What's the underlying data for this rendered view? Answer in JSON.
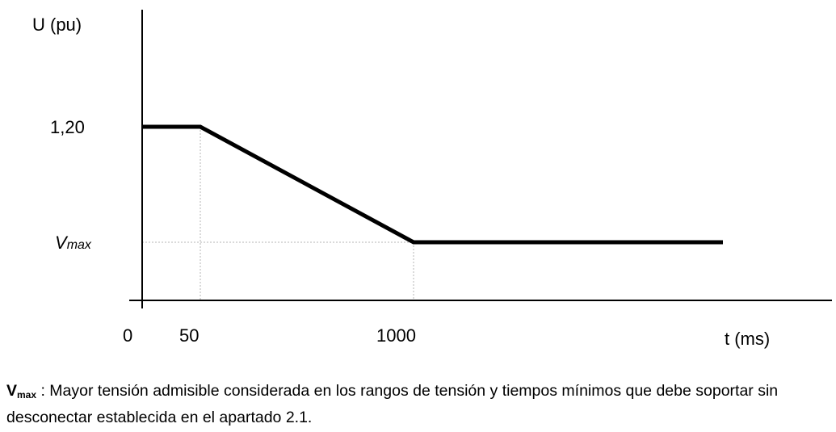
{
  "chart_data": {
    "type": "line",
    "ylabel": "U (pu)",
    "xlabel": "t (ms)",
    "x_ticks": [
      "0",
      "50",
      "1000"
    ],
    "y_ticks": [
      "1,20",
      "V_max"
    ],
    "y_tick_symbol": {
      "main": "V",
      "sub": "max"
    },
    "series": [
      {
        "points": [
          {
            "t": 0,
            "u": "1,20"
          },
          {
            "t": 50,
            "u": "1,20"
          },
          {
            "t": 1000,
            "u": "V_max"
          },
          {
            "t": "end",
            "u": "V_max"
          }
        ]
      }
    ],
    "grid": false,
    "reference_lines": "dotted guides at t = 50, t = 1000 and U = V_max"
  },
  "caption": {
    "symbol_main": "V",
    "symbol_sub": "max",
    "text": " : Mayor tensión admisible considerada en los rangos de tensión y tiempos mínimos que debe soportar sin desconectar establecida en el apartado 2.1."
  }
}
